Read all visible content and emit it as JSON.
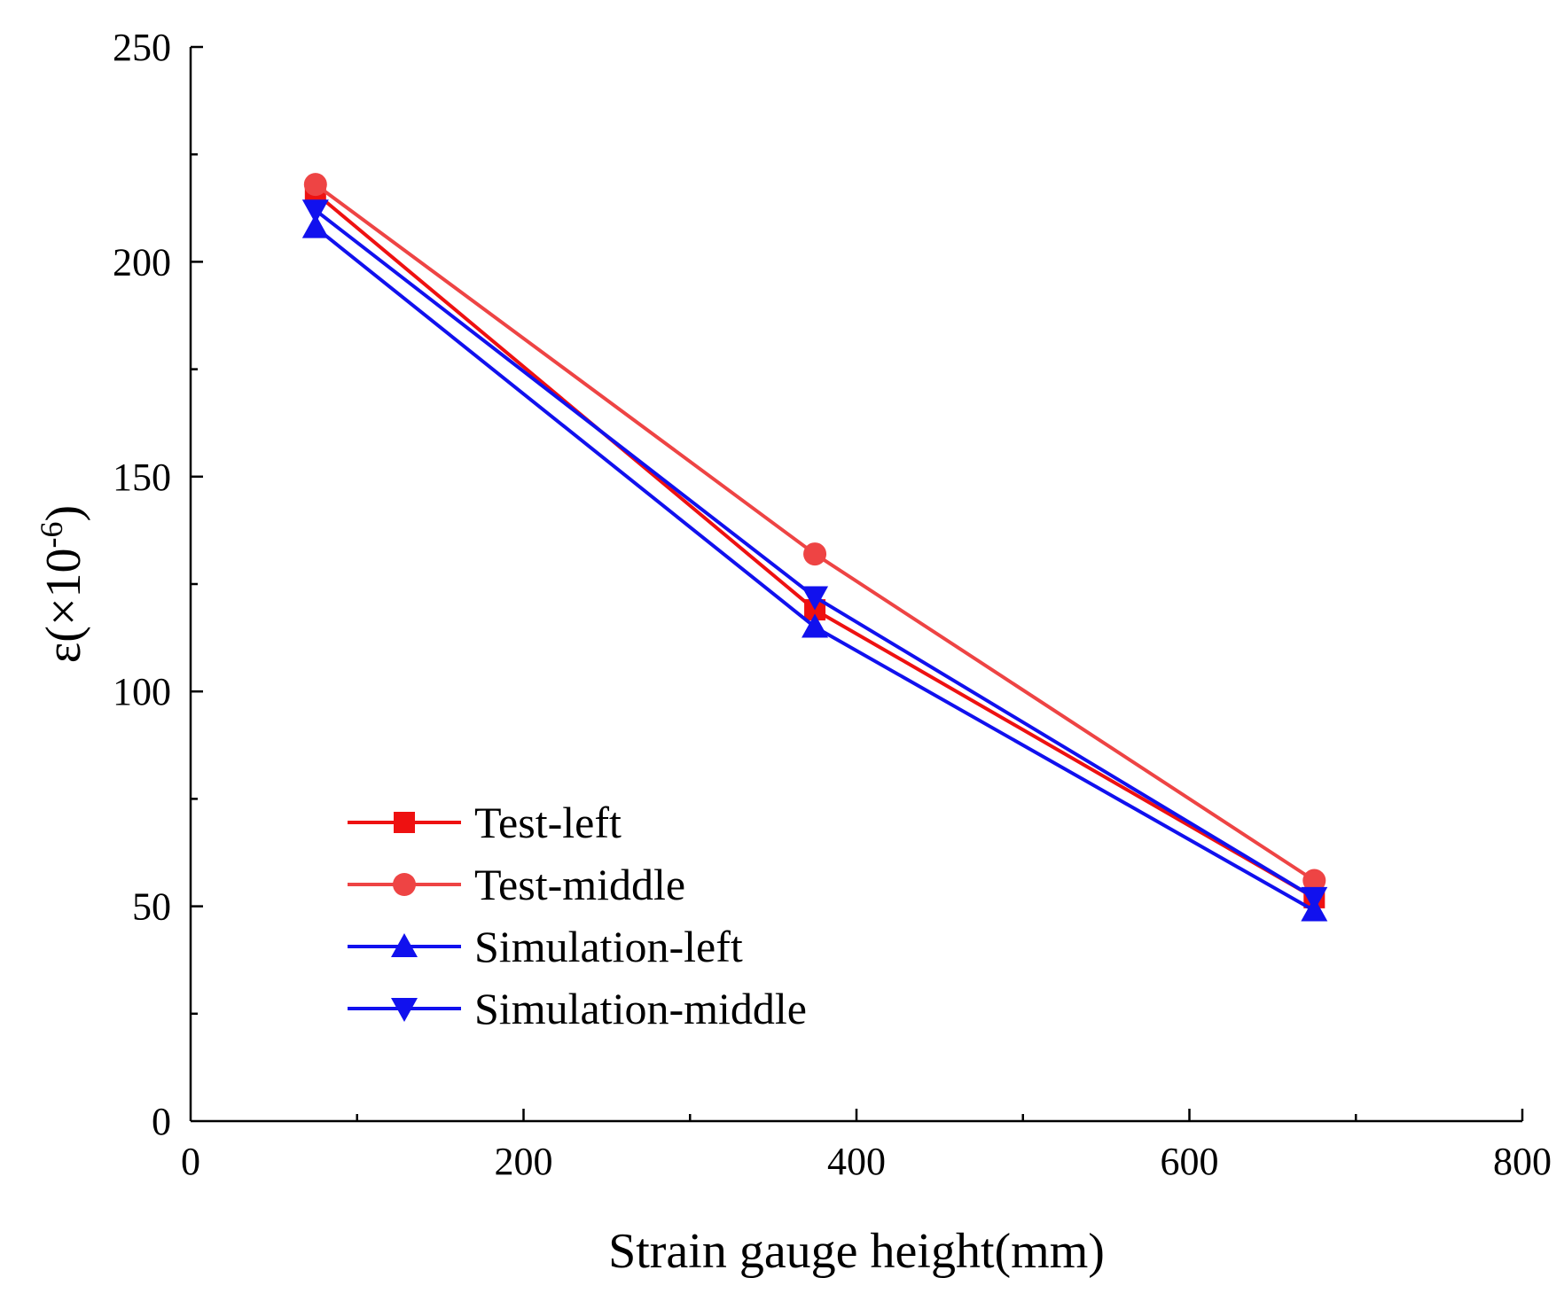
{
  "chart_data": {
    "type": "line",
    "title": "",
    "xlabel": "Strain gauge height(mm)",
    "ylabel_main": "ε(×10",
    "ylabel_sup": "-6",
    "ylabel_close": ")",
    "xlim": [
      0,
      800
    ],
    "ylim": [
      0,
      250
    ],
    "x_ticks": [
      0,
      200,
      400,
      600,
      800
    ],
    "x_tick_labels": [
      "0",
      "200",
      "400",
      "600",
      "800"
    ],
    "x_minor_ticks": [
      100,
      300,
      500,
      700
    ],
    "y_ticks": [
      0,
      50,
      100,
      150,
      200,
      250
    ],
    "y_tick_labels": [
      "0",
      "50",
      "100",
      "150",
      "200",
      "250"
    ],
    "y_minor_ticks": [
      25,
      75,
      125,
      175,
      225
    ],
    "grid": false,
    "legend_position": "bottom-left",
    "x": [
      75,
      375,
      675
    ],
    "series": [
      {
        "name": "Test-left",
        "values": [
          216,
          119,
          52
        ],
        "color": "#ee1111",
        "marker": "square"
      },
      {
        "name": "Test-middle",
        "values": [
          218,
          132,
          56
        ],
        "color": "#ee4444",
        "marker": "circle"
      },
      {
        "name": "Simulation-left",
        "values": [
          208,
          115,
          49
        ],
        "color": "#1111ee",
        "marker": "triangle-up"
      },
      {
        "name": "Simulation-middle",
        "values": [
          212,
          122,
          52
        ],
        "color": "#1111ee",
        "marker": "triangle-down"
      }
    ]
  }
}
